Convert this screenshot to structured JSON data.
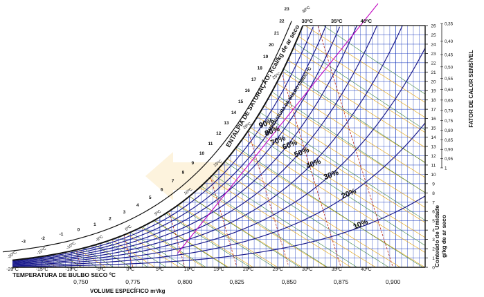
{
  "chart_data": {
    "type": "psychrometric",
    "title": "",
    "colors": {
      "saturation_curve": "#111111",
      "rh_curves": "#1a1a8c",
      "volume_lines": "#c0392b",
      "enthalpy_lines": "#e6a000",
      "wet_bulb_lines": "#2e7d32",
      "grid": "#1f3fbf",
      "shr_line": "#c000c0",
      "watermark": "#f6c766"
    },
    "dry_bulb": {
      "label": "TEMPERATURA DE BULBO SECO ºC",
      "range": [
        -20,
        50
      ],
      "ticks": [
        {
          "v": -20,
          "t": "-20ºC"
        },
        {
          "v": -15,
          "t": "-15ºC"
        },
        {
          "v": -10,
          "t": "-10ºC"
        },
        {
          "v": -5,
          "t": "-5ºC"
        },
        {
          "v": 0,
          "t": "0ºC"
        },
        {
          "v": 5,
          "t": "5ºC"
        },
        {
          "v": 10,
          "t": "10ºC"
        },
        {
          "v": 15,
          "t": "15ºC"
        },
        {
          "v": 20,
          "t": "20ºC"
        },
        {
          "v": 25,
          "t": "25ºC"
        },
        {
          "v": 30,
          "t": "30ºC"
        },
        {
          "v": 35,
          "t": "35ºC"
        },
        {
          "v": 40,
          "t": "40ºC"
        }
      ],
      "top_ticks": [
        {
          "v": 30,
          "t": "30ºC"
        },
        {
          "v": 35,
          "t": "35ºC"
        },
        {
          "v": 40,
          "t": "40ºC"
        }
      ]
    },
    "humidity_ratio": {
      "label_line1": "Conteúdo de Umidade",
      "label_line2": "g/kg de ar seco",
      "range": [
        0,
        26
      ],
      "ticks": [
        "0",
        "1",
        "2",
        "3",
        "4",
        "5",
        "6",
        "7",
        "8",
        "9",
        "10",
        "11",
        "12",
        "13",
        "14",
        "15",
        "16",
        "17",
        "18",
        "19",
        "20",
        "21",
        "22",
        "23",
        "24",
        "25",
        "26"
      ]
    },
    "specific_volume": {
      "label": "VOLUME ESPECÍFICO m³/kg",
      "ticks": [
        {
          "v": 0.75,
          "t": "0,750"
        },
        {
          "v": 0.775,
          "t": "0,775"
        },
        {
          "v": 0.8,
          "t": "0,800"
        },
        {
          "v": 0.825,
          "t": "0,825"
        },
        {
          "v": 0.85,
          "t": "0,850"
        },
        {
          "v": 0.875,
          "t": "0,875"
        },
        {
          "v": 0.9,
          "t": "0,900"
        }
      ]
    },
    "enthalpy": {
      "label": "ENTALPIA DE SATURAÇÃO: Kcal/kg de ar seco",
      "ticks": [
        "-3",
        "-2",
        "-1",
        "0",
        "1",
        "2",
        "3",
        "4",
        "5",
        "6",
        "7",
        "8",
        "9",
        "10",
        "11",
        "12",
        "13",
        "14",
        "15",
        "16",
        "17",
        "18",
        "19",
        "20",
        "21",
        "22",
        "23"
      ]
    },
    "wet_bulb": {
      "label": "TEMPERATURA DE BULBO ÚMIDO ºC",
      "ticks": [
        {
          "v": -20,
          "t": "-20ºC"
        },
        {
          "v": -15,
          "t": "-15ºC"
        },
        {
          "v": -10,
          "t": "-10ºC"
        },
        {
          "v": -5,
          "t": "-5ºC"
        },
        {
          "v": 0,
          "t": "0ºC"
        },
        {
          "v": 5,
          "t": "5ºC"
        },
        {
          "v": 10,
          "t": "10ºC"
        },
        {
          "v": 15,
          "t": "15ºC"
        },
        {
          "v": 20,
          "t": "20ºC"
        },
        {
          "v": 25,
          "t": "25ºC"
        },
        {
          "v": 30,
          "t": "30ºC"
        }
      ]
    },
    "relative_humidity": {
      "curves": [
        10,
        20,
        30,
        40,
        50,
        60,
        70,
        80,
        90
      ],
      "labels": [
        "10%",
        "20%",
        "30%",
        "40%",
        "50%",
        "60%",
        "70%",
        "80%",
        "90%"
      ]
    },
    "sensible_heat_factor": {
      "label": "FATOR DE CALOR SENSÍVEL",
      "ticks": [
        "0,35",
        "0,40",
        "0,45",
        "0,50",
        "0,55",
        "0,60",
        "0,65",
        "0,70",
        "0,75",
        "0,80",
        "0,85",
        "0,90",
        "0,95",
        "1"
      ]
    }
  }
}
